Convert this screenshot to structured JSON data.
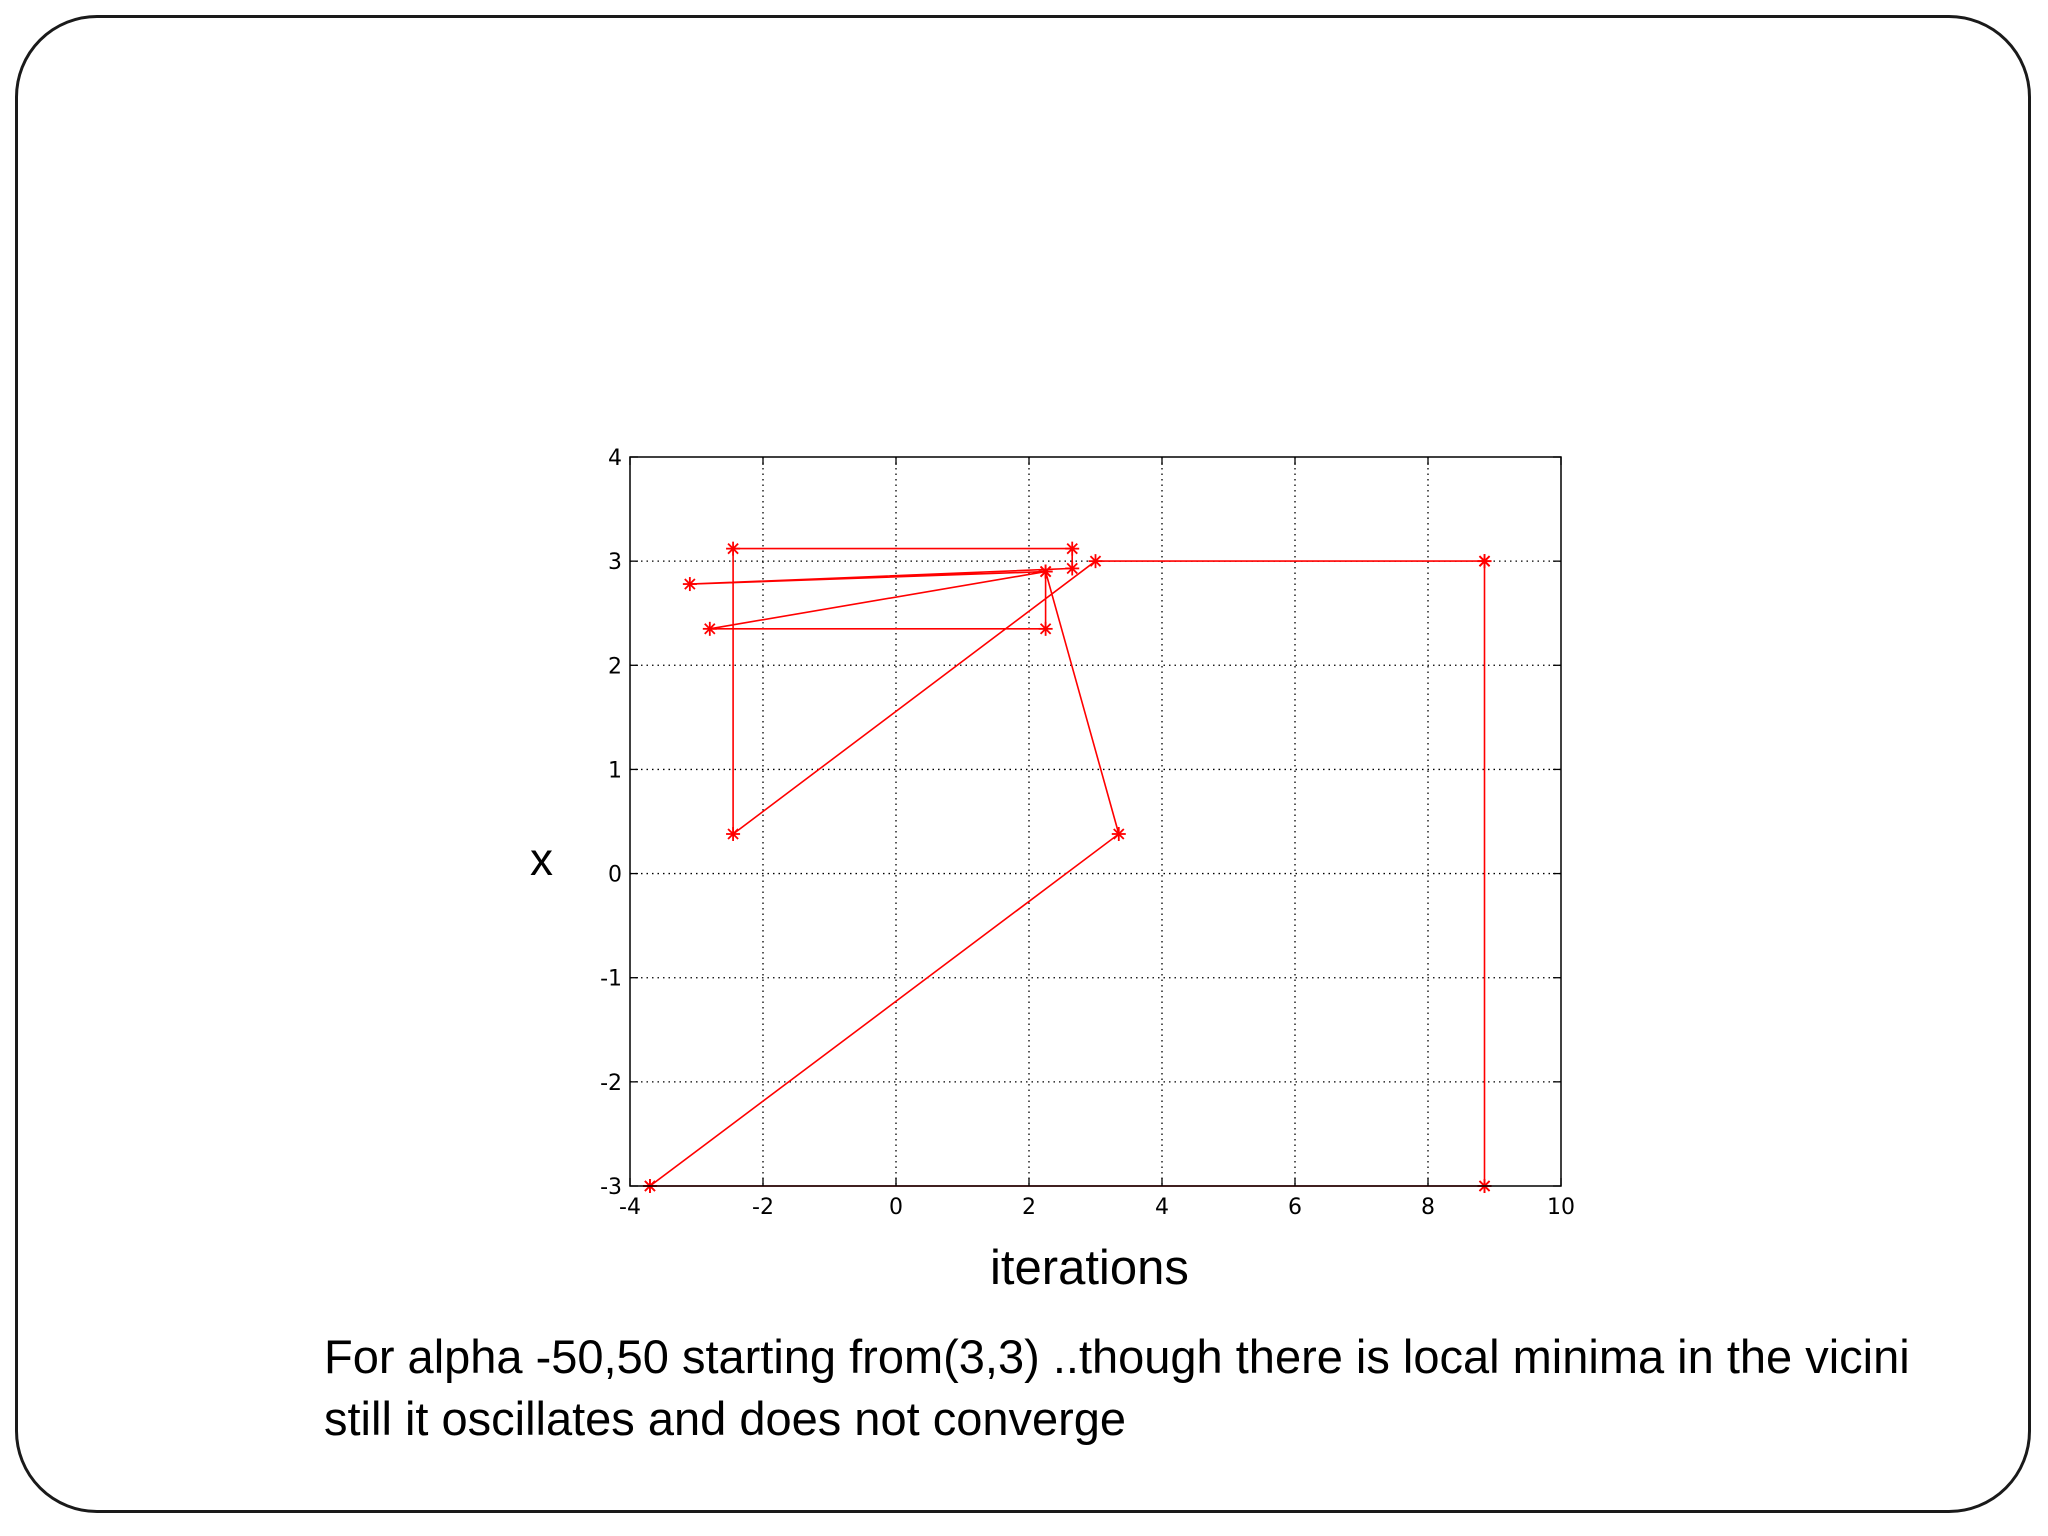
{
  "caption": {
    "line1": "For alpha -50,50 starting from(3,3) ..though there is local minima in the vicini",
    "line2": "still it oscillates and does not converge"
  },
  "chart_data": {
    "type": "line",
    "title": "",
    "xlabel": "iterations",
    "ylabel": "x",
    "xlim": [
      -4,
      10
    ],
    "ylim": [
      -3,
      4
    ],
    "xticks": [
      -4,
      -2,
      0,
      2,
      4,
      6,
      8,
      10
    ],
    "yticks": [
      -3,
      -2,
      -1,
      0,
      1,
      2,
      3,
      4
    ],
    "grid": true,
    "marker": "asterisk",
    "color": "#ff0000",
    "series": [
      {
        "x": [
          8.85,
          8.85,
          -3.7,
          3.35,
          2.25,
          2.25,
          -2.8,
          2.25,
          -3.1,
          2.65,
          2.65,
          -2.45,
          -2.45,
          3.0,
          8.85,
          8.85,
          -3.7
        ],
        "y": [
          3.0,
          -3.0,
          -3.0,
          0.38,
          2.9,
          2.35,
          2.35,
          2.9,
          2.78,
          2.93,
          3.12,
          3.12,
          0.38,
          3.0,
          3.0,
          -3.0,
          -3.0
        ]
      }
    ]
  }
}
